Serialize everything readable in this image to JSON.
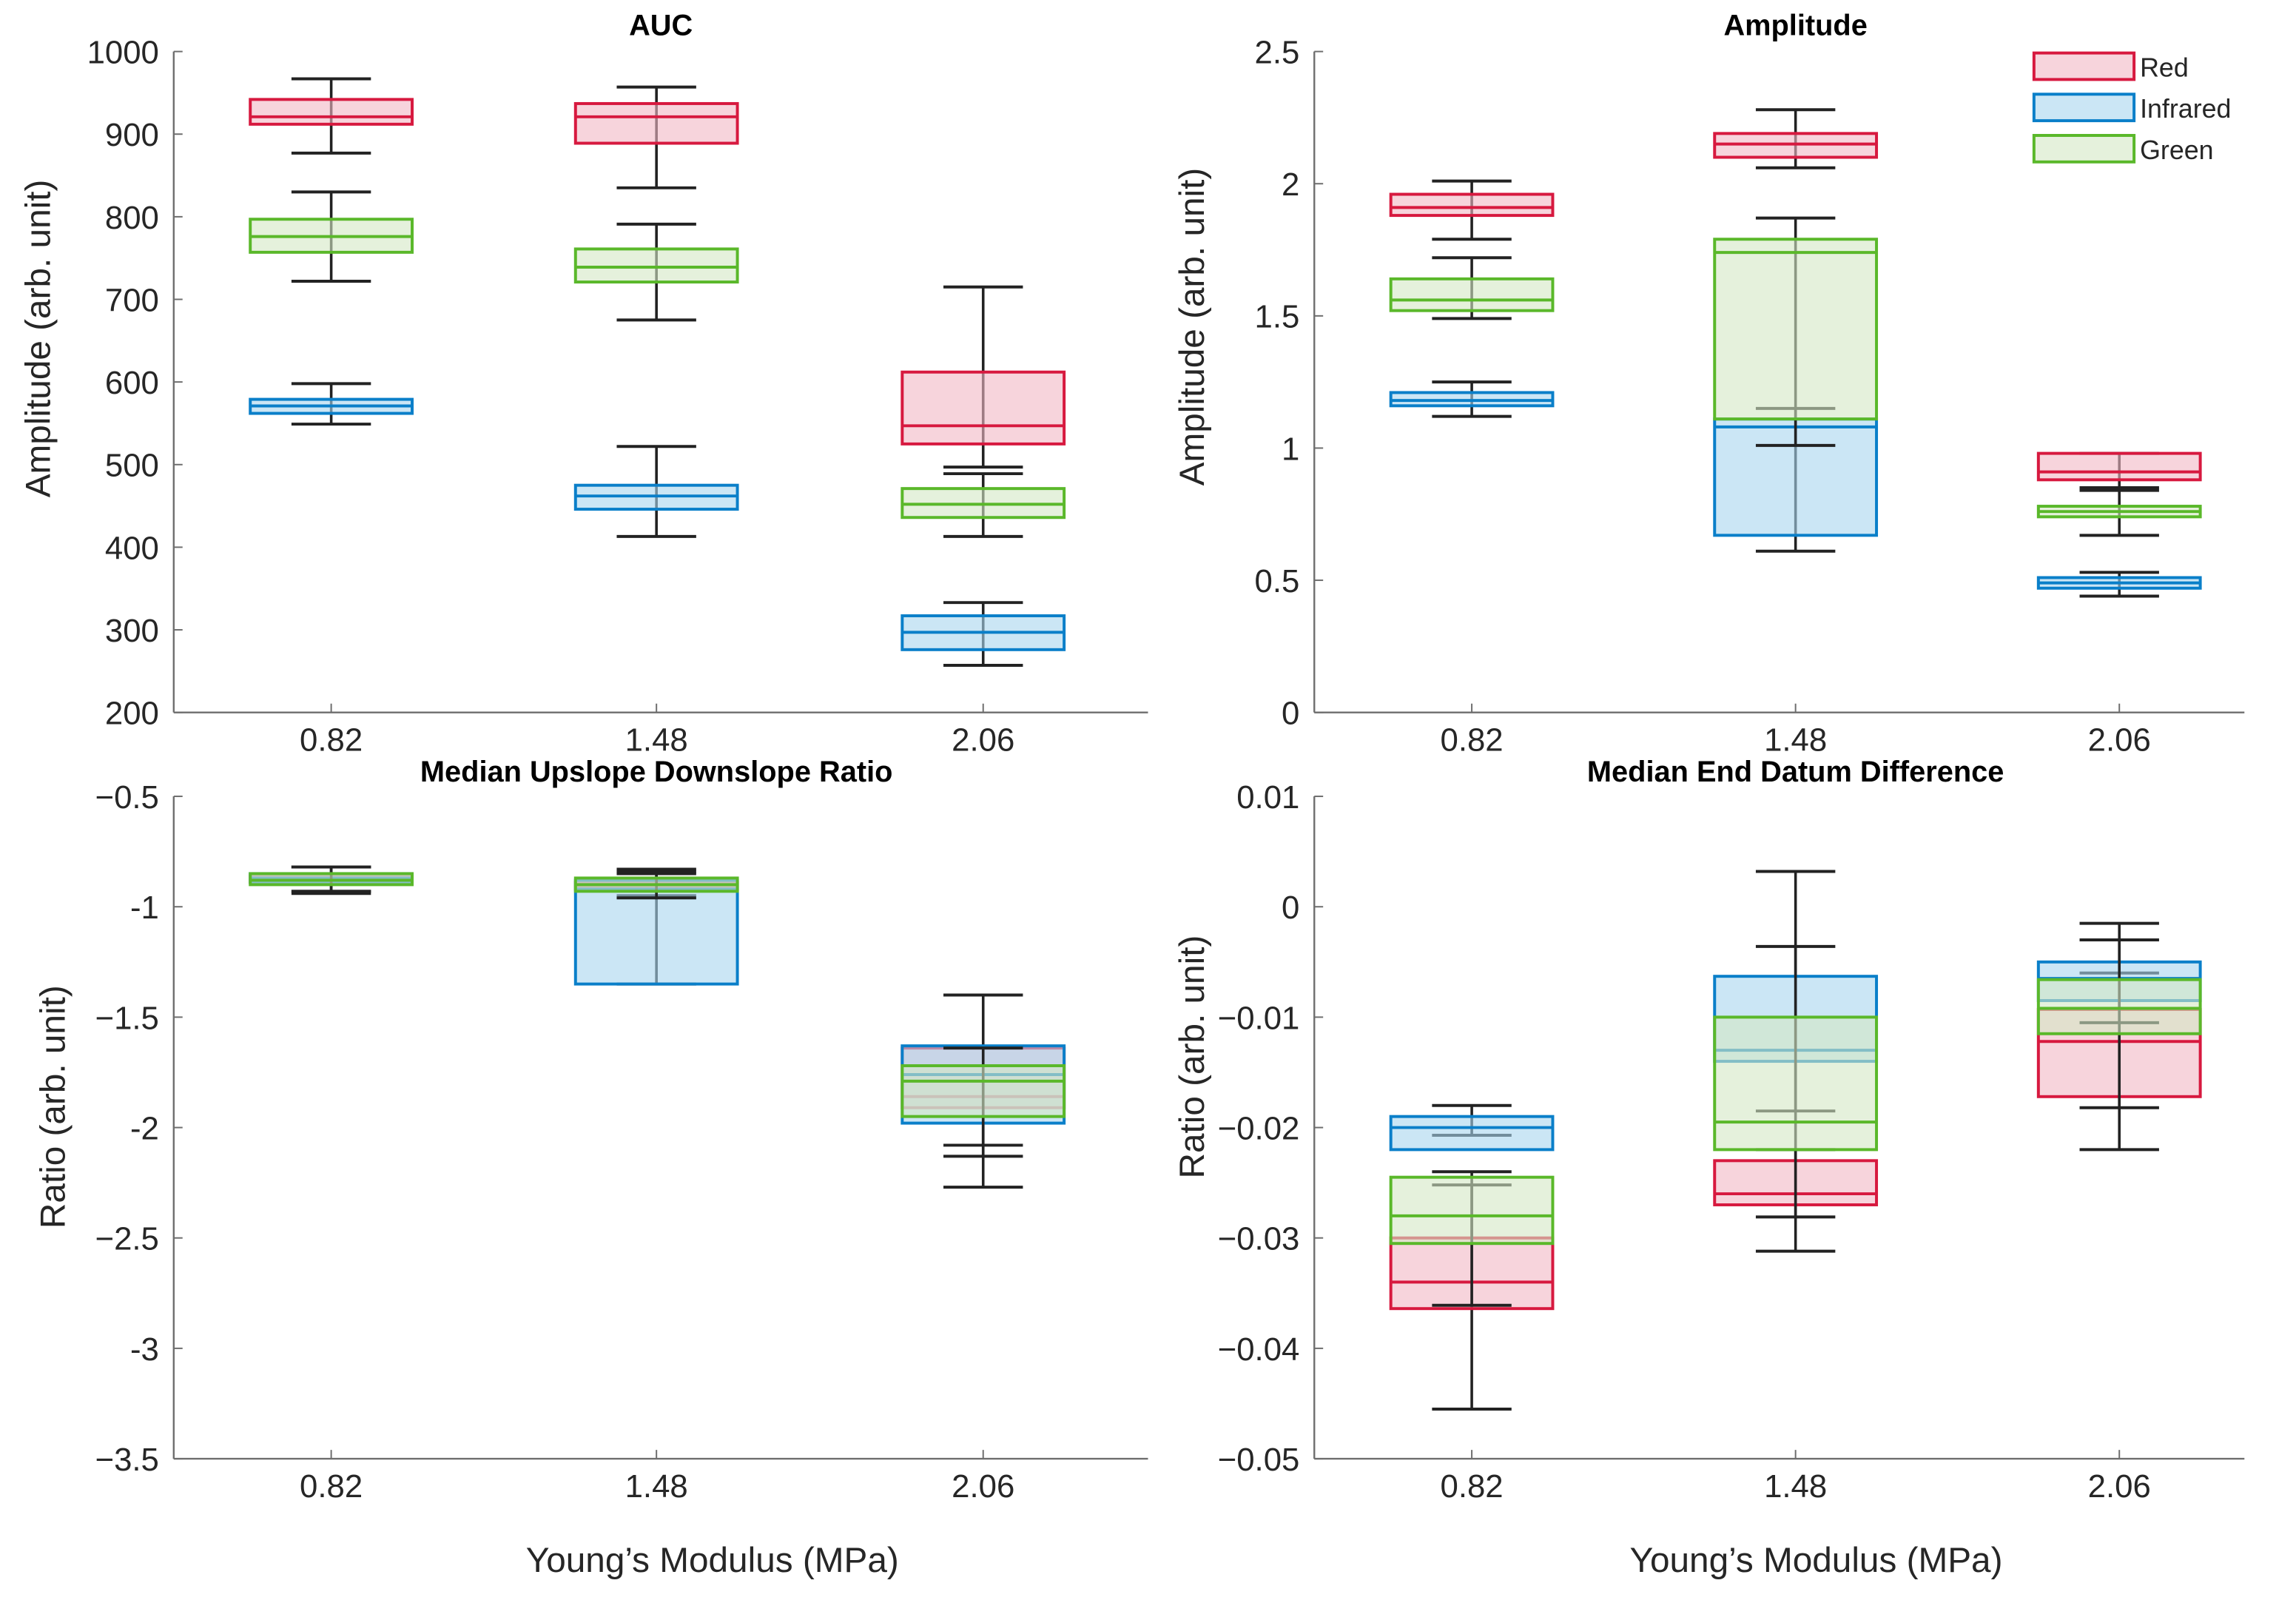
{
  "colors": {
    "Red": {
      "stroke": "#d7193f",
      "fill": "#f2b8c4"
    },
    "Infrared": {
      "stroke": "#0a7fc9",
      "fill": "#a8d6ee"
    },
    "Green": {
      "stroke": "#5ab82a",
      "fill": "#d3e8c4"
    },
    "whisker": "#222222",
    "axis": "#6e6e6e"
  },
  "legend": {
    "entries": [
      "Red",
      "Infrared",
      "Green"
    ],
    "placement": "top-right of Amplitude panel"
  },
  "chart_data": [
    {
      "type": "box",
      "title": "AUC",
      "ylabel": "Amplitude (arb. unit)",
      "xlabel": "",
      "categories": [
        "0.82",
        "1.48",
        "2.06"
      ],
      "ylim": [
        200,
        1000
      ],
      "yticks": [
        200,
        300,
        400,
        500,
        600,
        700,
        800,
        900,
        1000
      ],
      "ytick_labels": [
        "200",
        "300",
        "400",
        "500",
        "600",
        "700",
        "800",
        "900",
        "1000"
      ],
      "series": [
        {
          "name": "Red",
          "boxes": [
            [
              877,
              912,
              921,
              942,
              967
            ],
            [
              835,
              889,
              921,
              937,
              957
            ],
            [
              497,
              525,
              547,
              612,
              715
            ]
          ]
        },
        {
          "name": "Infrared",
          "boxes": [
            [
              549,
              562,
              571,
              579,
              598
            ],
            [
              413,
              446,
              462,
              475,
              522
            ],
            [
              257,
              276,
              297,
              317,
              333
            ]
          ]
        },
        {
          "name": "Green",
          "boxes": [
            [
              722,
              757,
              776,
              797,
              830
            ],
            [
              675,
              721,
              739,
              761,
              791
            ],
            [
              413,
              436,
              452,
              471,
              489
            ]
          ]
        }
      ]
    },
    {
      "type": "box",
      "title": "Amplitude",
      "ylabel": "Amplitude (arb. unit)",
      "xlabel": "",
      "categories": [
        "0.82",
        "1.48",
        "2.06"
      ],
      "ylim": [
        0,
        2.5
      ],
      "yticks": [
        0,
        0.5,
        1,
        1.5,
        2,
        2.5
      ],
      "ytick_labels": [
        "0",
        "0.5",
        "1",
        "1.5",
        "2",
        "2.5"
      ],
      "series": [
        {
          "name": "Red",
          "boxes": [
            [
              1.79,
              1.88,
              1.91,
              1.96,
              2.01
            ],
            [
              2.06,
              2.1,
              2.15,
              2.19,
              2.28
            ],
            [
              0.85,
              0.88,
              0.91,
              0.98,
              0.98
            ]
          ]
        },
        {
          "name": "Infrared",
          "boxes": [
            [
              1.12,
              1.16,
              1.18,
              1.21,
              1.25
            ],
            [
              0.61,
              0.67,
              1.08,
              1.11,
              1.15
            ],
            [
              0.44,
              0.47,
              0.49,
              0.51,
              0.53
            ]
          ]
        },
        {
          "name": "Green",
          "boxes": [
            [
              1.49,
              1.52,
              1.56,
              1.64,
              1.72
            ],
            [
              1.01,
              1.11,
              1.74,
              1.79,
              1.87
            ],
            [
              0.67,
              0.74,
              0.76,
              0.78,
              0.84
            ]
          ]
        }
      ]
    },
    {
      "type": "box",
      "title": "Median Upslope Downslope Ratio",
      "ylabel": "Ratio (arb. unit)",
      "xlabel": "Young’s Modulus (MPa)",
      "categories": [
        "0.82",
        "1.48",
        "2.06"
      ],
      "ylim": [
        -3.5,
        -0.5
      ],
      "yticks": [
        -3.5,
        -3,
        -2.5,
        -2,
        -1.5,
        -1,
        -0.5
      ],
      "ytick_labels": [
        "−3.5",
        "-3",
        "−2.5",
        "-2",
        "−1.5",
        "-1",
        "−0.5"
      ],
      "series": [
        {
          "name": "Red",
          "boxes": [
            [
              -0.93,
              -0.89,
              -0.88,
              -0.86,
              -0.82
            ],
            [
              -0.95,
              -0.92,
              -0.91,
              -0.89,
              -0.84
            ],
            [
              -2.13,
              -1.91,
              -1.86,
              -1.64,
              -1.64
            ]
          ]
        },
        {
          "name": "Infrared",
          "boxes": [
            [
              -0.94,
              -0.89,
              -0.87,
              -0.85,
              -0.82
            ],
            [
              -1.35,
              -1.35,
              -0.92,
              -0.88,
              -0.85
            ],
            [
              -2.27,
              -1.98,
              -1.76,
              -1.63,
              -1.4
            ]
          ]
        },
        {
          "name": "Green",
          "boxes": [
            [
              -0.93,
              -0.9,
              -0.88,
              -0.85,
              -0.82
            ],
            [
              -0.96,
              -0.93,
              -0.9,
              -0.87,
              -0.83
            ],
            [
              -2.08,
              -1.95,
              -1.79,
              -1.72,
              -1.64
            ]
          ]
        }
      ]
    },
    {
      "type": "box",
      "title": "Median End Datum Difference",
      "ylabel": "Ratio (arb. unit)",
      "xlabel": "Young’s Modulus (MPa)",
      "categories": [
        "0.82",
        "1.48",
        "2.06"
      ],
      "ylim": [
        -0.05,
        0.01
      ],
      "yticks": [
        -0.05,
        -0.04,
        -0.03,
        -0.02,
        -0.01,
        0,
        0.01
      ],
      "ytick_labels": [
        "−0.05",
        "−0.04",
        "−0.03",
        "−0.02",
        "−0.01",
        "0",
        "0.01"
      ],
      "series": [
        {
          "name": "Red",
          "boxes": [
            [
              -0.0455,
              -0.0364,
              -0.034,
              -0.03,
              -0.024
            ],
            [
              -0.0312,
              -0.027,
              -0.026,
              -0.023,
              -0.022
            ],
            [
              -0.022,
              -0.0172,
              -0.0122,
              -0.0093,
              -0.006
            ]
          ]
        },
        {
          "name": "Infrared",
          "boxes": [
            [
              -0.0207,
              -0.022,
              -0.02,
              -0.019,
              -0.018
            ],
            [
              -0.0185,
              -0.014,
              -0.013,
              -0.0063,
              -0.0036
            ],
            [
              -0.0105,
              -0.0085,
              -0.0065,
              -0.005,
              -0.0015
            ]
          ]
        },
        {
          "name": "Green",
          "boxes": [
            [
              -0.0361,
              -0.0305,
              -0.028,
              -0.0245,
              -0.0252
            ],
            [
              -0.0281,
              -0.022,
              -0.0195,
              -0.01,
              0.0032
            ],
            [
              -0.0182,
              -0.0115,
              -0.0092,
              -0.0066,
              -0.003
            ]
          ]
        }
      ]
    }
  ]
}
